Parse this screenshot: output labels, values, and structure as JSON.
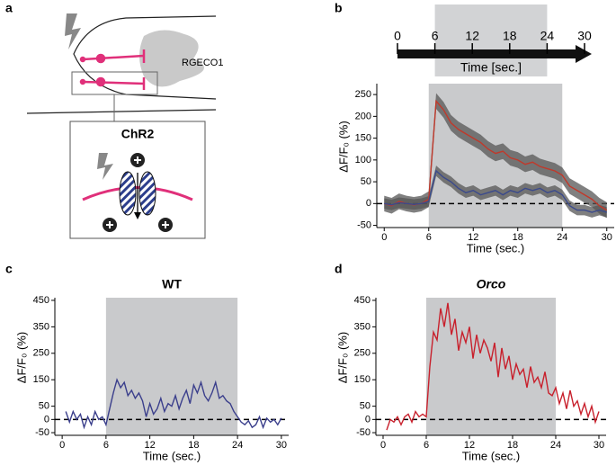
{
  "panel_labels": [
    "a",
    "b",
    "c",
    "d"
  ],
  "diagram": {
    "label": "RGECO1",
    "box_title": "ChR2"
  },
  "chart_data": [
    {
      "type": "timeline",
      "xlabel": "Time [sec.]",
      "xlim": [
        0,
        30
      ],
      "xticks": [
        0,
        6,
        12,
        18,
        24,
        30
      ],
      "shade": [
        6,
        24
      ]
    },
    {
      "type": "line",
      "xlabel": "Time (sec.)",
      "ylabel": "ΔF/F₀ (%)",
      "xlim": [
        -1,
        31
      ],
      "ylim": [
        -55,
        275
      ],
      "xticks": [
        0,
        6,
        12,
        18,
        24,
        30
      ],
      "yticks": [
        -50,
        0,
        50,
        100,
        150,
        200,
        250
      ],
      "shade": [
        6,
        24
      ],
      "reference_line": 0,
      "x": [
        0,
        1,
        2,
        3,
        4,
        5,
        6,
        7,
        8,
        9,
        10,
        11,
        12,
        13,
        14,
        15,
        16,
        17,
        18,
        19,
        20,
        21,
        22,
        23,
        24,
        25,
        26,
        27,
        28,
        29,
        30
      ],
      "series": [
        {
          "color": "#c0392b",
          "error": 18,
          "values": [
            0,
            -5,
            5,
            0,
            -3,
            0,
            10,
            235,
            215,
            185,
            170,
            160,
            150,
            140,
            125,
            115,
            120,
            105,
            100,
            90,
            95,
            85,
            80,
            75,
            65,
            40,
            30,
            20,
            10,
            -5,
            -15
          ]
        },
        {
          "color": "#3b4a8c",
          "error": 12,
          "values": [
            0,
            -3,
            2,
            0,
            -2,
            0,
            5,
            75,
            60,
            50,
            35,
            25,
            30,
            20,
            25,
            30,
            20,
            30,
            25,
            35,
            30,
            35,
            25,
            30,
            20,
            -5,
            -15,
            -15,
            -20,
            -15,
            -20
          ]
        }
      ]
    },
    {
      "type": "line",
      "title": "WT",
      "title_color": "#3b3f8c",
      "title_style": "normal",
      "xlabel": "Time (sec.)",
      "ylabel": "ΔF/F₀ (%)",
      "xlim": [
        -1,
        31
      ],
      "ylim": [
        -60,
        460
      ],
      "xticks": [
        0,
        6,
        12,
        18,
        24,
        30
      ],
      "yticks": [
        -50,
        0,
        50,
        150,
        250,
        350,
        450
      ],
      "shade": [
        6,
        24
      ],
      "reference_line": 0,
      "x": [
        0.5,
        1,
        1.5,
        2,
        2.5,
        3,
        3.5,
        4,
        4.5,
        5,
        5.5,
        6,
        6.5,
        7,
        7.5,
        8,
        8.5,
        9,
        9.5,
        10,
        10.5,
        11,
        11.5,
        12,
        12.5,
        13,
        13.5,
        14,
        14.5,
        15,
        15.5,
        16,
        16.5,
        17,
        17.5,
        18,
        18.5,
        19,
        19.5,
        20,
        20.5,
        21,
        21.5,
        22,
        22.5,
        23,
        23.5,
        24,
        24.5,
        25,
        25.5,
        26,
        26.5,
        27,
        27.5,
        28,
        28.5,
        29,
        29.5,
        30
      ],
      "series": [
        {
          "color": "#3b3f8c",
          "values": [
            30,
            -10,
            30,
            0,
            20,
            -30,
            10,
            -20,
            30,
            0,
            10,
            -20,
            40,
            100,
            150,
            120,
            140,
            90,
            110,
            80,
            100,
            70,
            10,
            60,
            20,
            40,
            80,
            30,
            60,
            50,
            90,
            40,
            80,
            110,
            60,
            130,
            100,
            140,
            90,
            70,
            100,
            140,
            80,
            90,
            70,
            60,
            30,
            10,
            -10,
            -20,
            -5,
            -30,
            -20,
            10,
            -30,
            5,
            -10,
            0,
            -20,
            5
          ]
        }
      ]
    },
    {
      "type": "line",
      "title": "Orco",
      "title_color": "#c8202c",
      "title_style": "italic",
      "xlabel": "Time (sec.)",
      "ylabel": "ΔF/F₀ (%)",
      "xlim": [
        -1,
        31
      ],
      "ylim": [
        -60,
        460
      ],
      "xticks": [
        0,
        6,
        12,
        18,
        24,
        30
      ],
      "yticks": [
        -50,
        0,
        50,
        150,
        250,
        350,
        450
      ],
      "shade": [
        6,
        24
      ],
      "reference_line": 0,
      "x": [
        0.5,
        1,
        1.5,
        2,
        2.5,
        3,
        3.5,
        4,
        4.5,
        5,
        5.5,
        6,
        6.5,
        7,
        7.5,
        8,
        8.5,
        9,
        9.5,
        10,
        10.5,
        11,
        11.5,
        12,
        12.5,
        13,
        13.5,
        14,
        14.5,
        15,
        15.5,
        16,
        16.5,
        17,
        17.5,
        18,
        18.5,
        19,
        19.5,
        20,
        20.5,
        21,
        21.5,
        22,
        22.5,
        23,
        23.5,
        24,
        24.5,
        25,
        25.5,
        26,
        26.5,
        27,
        27.5,
        28,
        28.5,
        29,
        29.5,
        30
      ],
      "series": [
        {
          "color": "#c8202c",
          "values": [
            -40,
            0,
            -10,
            10,
            -20,
            10,
            20,
            -10,
            30,
            10,
            20,
            10,
            200,
            330,
            300,
            420,
            350,
            440,
            320,
            380,
            260,
            330,
            290,
            350,
            230,
            320,
            250,
            300,
            270,
            220,
            290,
            160,
            270,
            190,
            240,
            150,
            210,
            170,
            190,
            120,
            200,
            140,
            160,
            120,
            180,
            100,
            90,
            120,
            60,
            100,
            40,
            110,
            50,
            70,
            20,
            60,
            10,
            50,
            -10,
            30
          ]
        }
      ]
    }
  ]
}
